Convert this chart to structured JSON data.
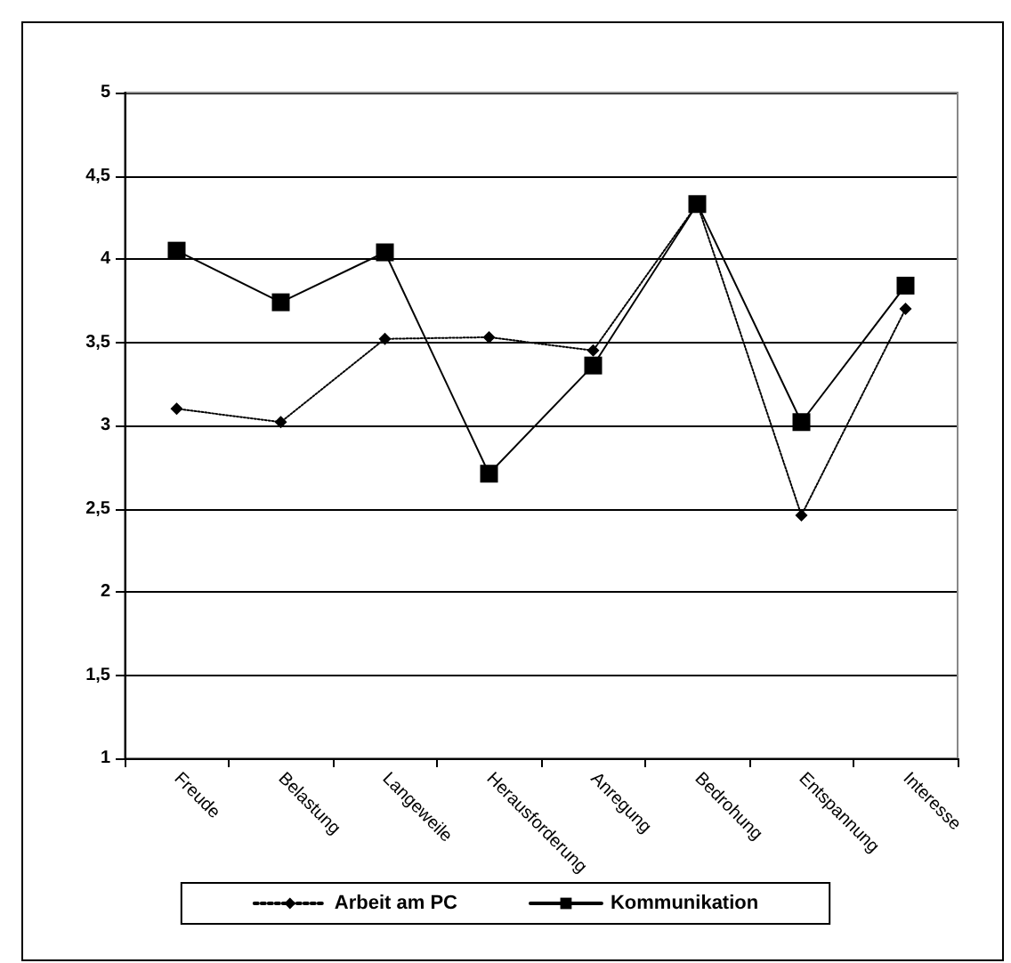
{
  "chart_data": {
    "type": "line",
    "categories": [
      "Freude",
      "Belastung",
      "Langeweile",
      "Herausforderung",
      "Anregung",
      "Bedrohung",
      "Entspannung",
      "Interesse"
    ],
    "series": [
      {
        "name": "Arbeit am PC",
        "color": "#000000",
        "marker": "diamond",
        "line_style": "dotted",
        "values": [
          3.1,
          3.02,
          3.52,
          3.53,
          3.45,
          4.33,
          2.46,
          3.7
        ]
      },
      {
        "name": "Kommunikation",
        "color": "#000000",
        "marker": "square",
        "line_style": "solid",
        "values": [
          4.05,
          3.74,
          4.04,
          2.71,
          3.36,
          4.33,
          3.02,
          3.84
        ]
      }
    ],
    "ylim": [
      1,
      5
    ],
    "yticks": [
      {
        "value": 1,
        "label": "1"
      },
      {
        "value": 1.5,
        "label": "1,5"
      },
      {
        "value": 2,
        "label": "2"
      },
      {
        "value": 2.5,
        "label": "2,5"
      },
      {
        "value": 3,
        "label": "3"
      },
      {
        "value": 3.5,
        "label": "3,5"
      },
      {
        "value": 4,
        "label": "4"
      },
      {
        "value": 4.5,
        "label": "4,5"
      },
      {
        "value": 5,
        "label": "5"
      }
    ],
    "grid": "y",
    "legend": "bottom"
  }
}
